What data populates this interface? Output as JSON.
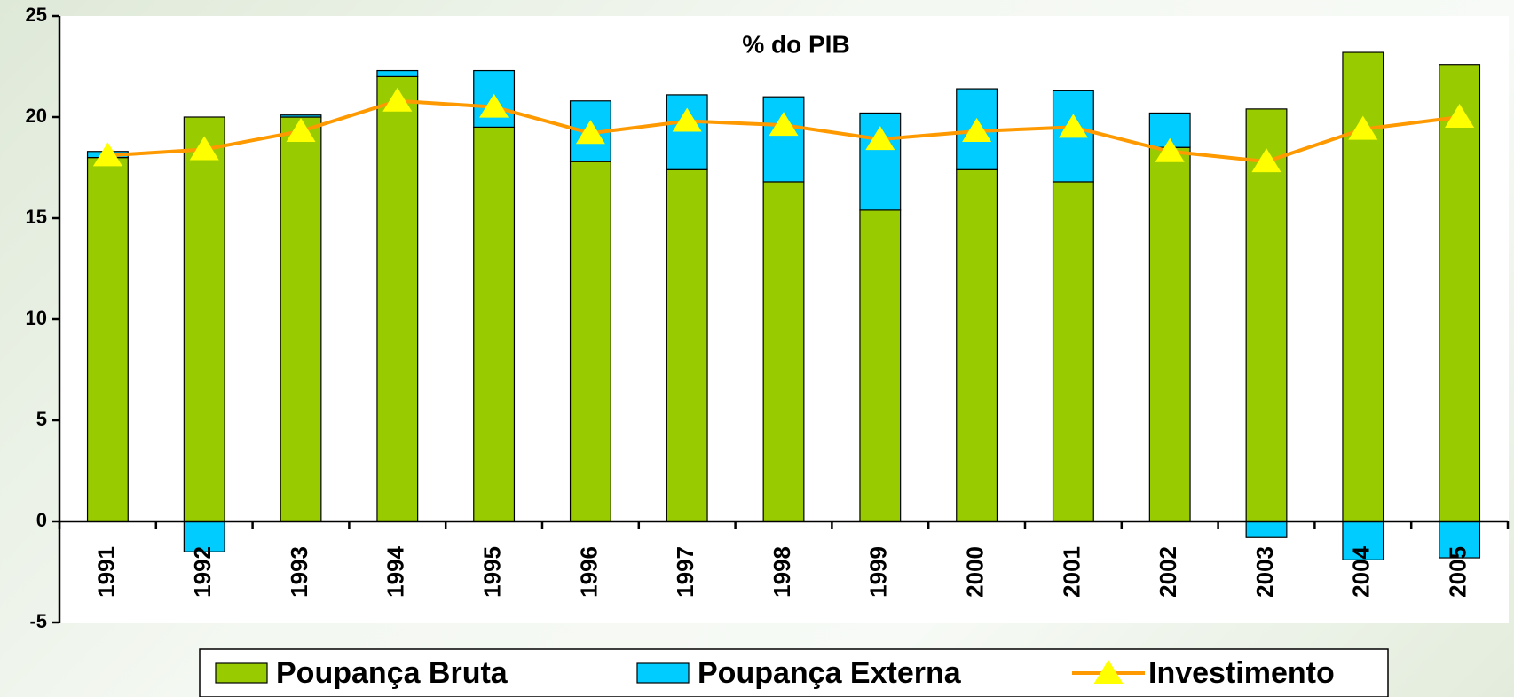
{
  "chart_data": {
    "type": "bar",
    "stacked": true,
    "title": "% do PIB",
    "categories": [
      "1991",
      "1992",
      "1993",
      "1994",
      "1995",
      "1996",
      "1997",
      "1998",
      "1999",
      "2000",
      "2001",
      "2002",
      "2003",
      "2004",
      "2005"
    ],
    "series": [
      {
        "name": "Poupança Bruta",
        "type": "bar",
        "color": "#99cc00",
        "values": [
          18.0,
          20.0,
          20.0,
          22.0,
          19.5,
          17.8,
          17.4,
          16.8,
          15.4,
          17.4,
          16.8,
          18.5,
          20.4,
          23.2,
          22.6
        ]
      },
      {
        "name": "Poupança Externa",
        "type": "bar",
        "color": "#00ccff",
        "values": [
          0.3,
          -1.5,
          0.1,
          0.3,
          2.8,
          3.0,
          3.7,
          4.2,
          4.8,
          4.0,
          4.5,
          1.7,
          -0.8,
          -1.9,
          -1.8
        ]
      },
      {
        "name": "Investimento",
        "type": "line",
        "color": "#ff9900",
        "marker_color": "#ffff00",
        "values": [
          18.1,
          18.4,
          19.3,
          20.8,
          20.5,
          19.2,
          19.8,
          19.6,
          18.9,
          19.3,
          19.5,
          18.3,
          17.8,
          19.4,
          20.0
        ]
      }
    ],
    "ylim": [
      -5,
      25
    ],
    "yticks": [
      -5,
      0,
      5,
      10,
      15,
      20,
      25
    ],
    "legend": "bottom"
  }
}
